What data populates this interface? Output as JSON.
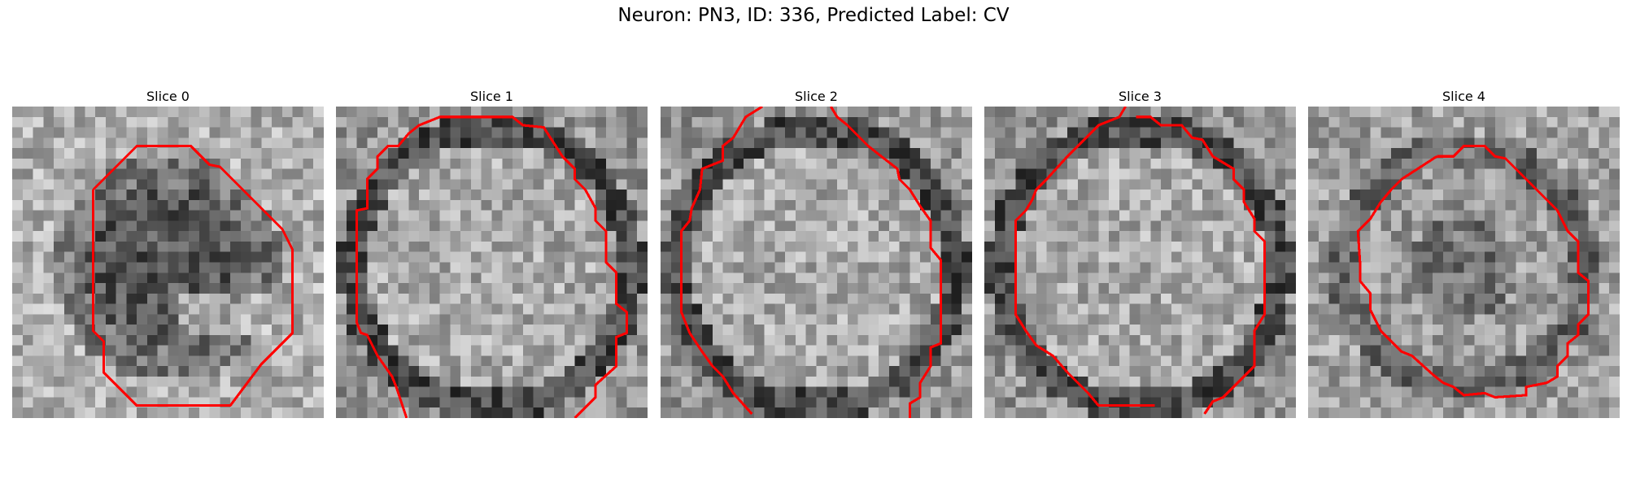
{
  "figure": {
    "title": "Neuron: PN3, ID: 336, Predicted Label: CV"
  },
  "panels": [
    {
      "title": "Slice 0"
    },
    {
      "title": "Slice 1"
    },
    {
      "title": "Slice 2"
    },
    {
      "title": "Slice 3"
    },
    {
      "title": "Slice 4"
    }
  ],
  "colors": {
    "contour": "#ff0000",
    "background": "#ffffff"
  },
  "image_style": "grayscale microscopy patches with red contour overlay"
}
